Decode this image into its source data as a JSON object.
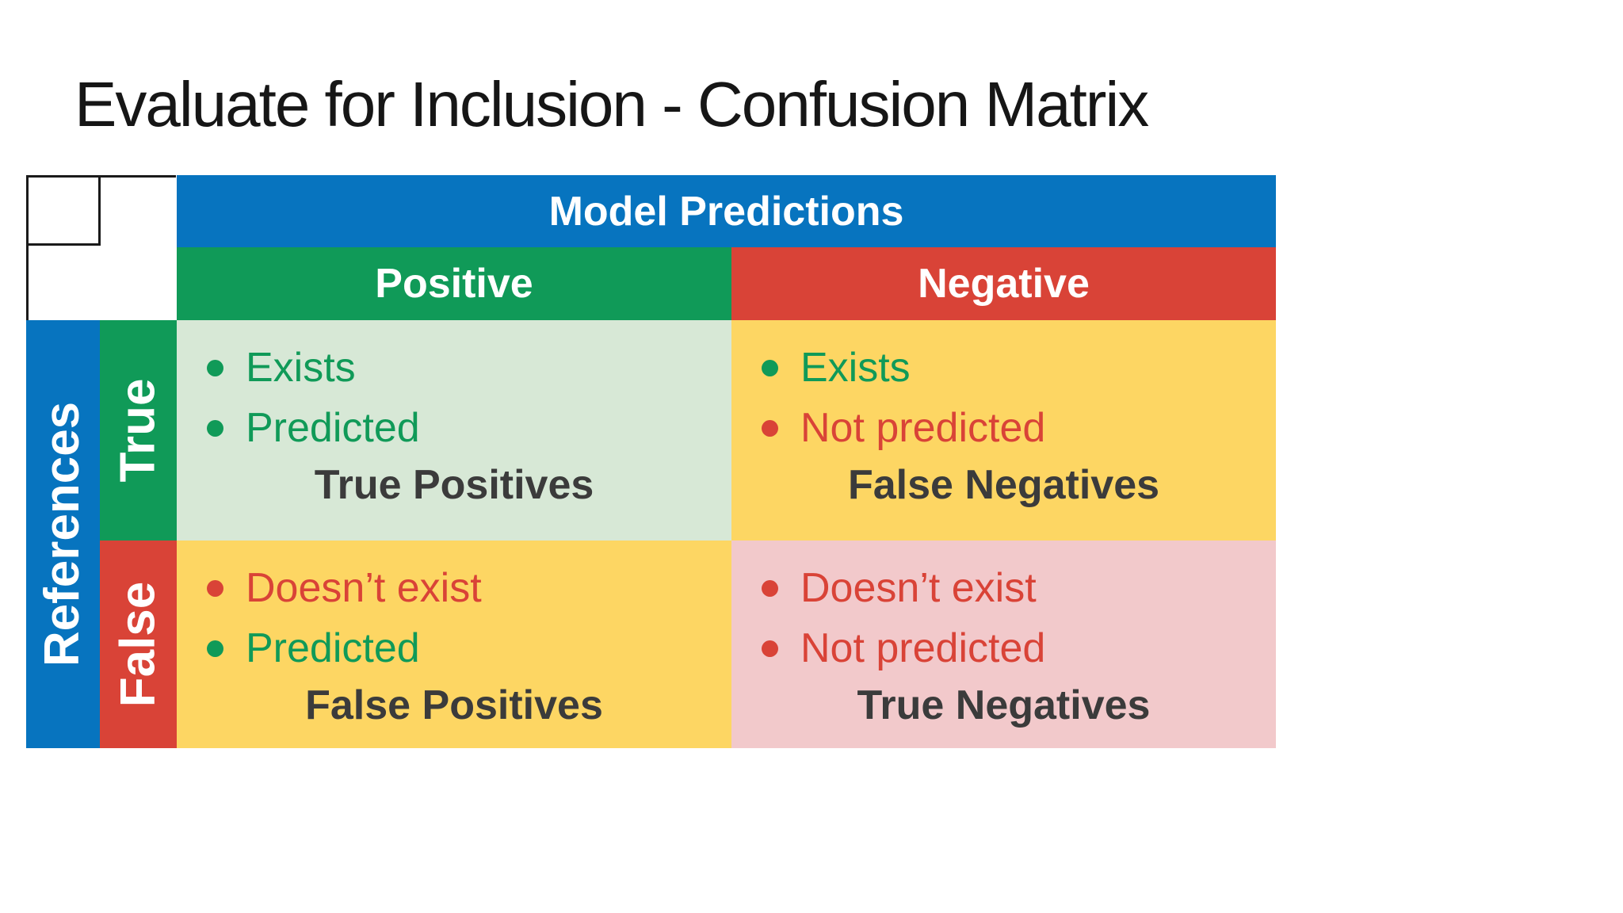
{
  "slide": {
    "title": "Evaluate for Inclusion - Confusion Matrix"
  },
  "matrix": {
    "column_axis_label": "Model Predictions",
    "row_axis_label": "References",
    "column_headers": [
      "Positive",
      "Negative"
    ],
    "row_headers": [
      "True",
      "False"
    ],
    "cells": [
      {
        "row": "True",
        "column": "Positive",
        "caption": "True Positives",
        "bullets": [
          {
            "text": "Exists",
            "color": "green"
          },
          {
            "text": "Predicted",
            "color": "green"
          }
        ]
      },
      {
        "row": "True",
        "column": "Negative",
        "caption": "False Negatives",
        "bullets": [
          {
            "text": "Exists",
            "color": "green"
          },
          {
            "text": "Not predicted",
            "color": "red"
          }
        ]
      },
      {
        "row": "False",
        "column": "Positive",
        "caption": "False Positives",
        "bullets": [
          {
            "text": "Doesn’t exist",
            "color": "red"
          },
          {
            "text": "Predicted",
            "color": "green"
          }
        ]
      },
      {
        "row": "False",
        "column": "Negative",
        "caption": "True Negatives",
        "bullets": [
          {
            "text": "Doesn’t exist",
            "color": "red"
          },
          {
            "text": "Not predicted",
            "color": "red"
          }
        ]
      }
    ]
  },
  "colors": {
    "header_blue": "#0774BF",
    "positive_green": "#109A58",
    "negative_red": "#D94337",
    "cell_light_green": "#D7E8D6",
    "cell_yellow": "#FDD663",
    "cell_pink": "#F2C9CB",
    "caption_dark": "#3B3B3B",
    "bullet_green": "#109A58",
    "bullet_red": "#D94337"
  }
}
